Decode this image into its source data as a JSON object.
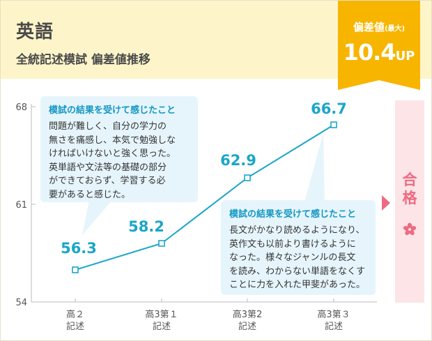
{
  "header": {
    "subject": "英語",
    "subtitle": "全統記述模試 偏差値推移"
  },
  "badge": {
    "title": "偏差値",
    "title_note": "(最大)",
    "value": "10.4",
    "unit": "UP",
    "color": "#f7b500"
  },
  "callouts": [
    {
      "title": "模試の結果を受けて感じたこと",
      "lines": [
        "問題が難しく、自分の学力の",
        "無さを痛感し、本気で勉強しな",
        "ければいけないと強く思った。",
        "英単語や文法等の基礎の部分",
        "ができておらず、学習する必",
        "要があると感じた。"
      ]
    },
    {
      "title": "模試の結果を受けて感じたこと",
      "lines": [
        "長文がかなり読めるようになり、",
        "英作文も以前より書けるように",
        "なった。様々なジャンルの長文",
        "を読み、わからない単語をなくす",
        "ことに力を入れた甲斐があった。"
      ]
    }
  ],
  "result": {
    "chars": [
      "合",
      "格"
    ],
    "color": "#ee6a82"
  },
  "chart_data": {
    "type": "line",
    "categories": [
      [
        "高２",
        "記述"
      ],
      [
        "高3第１",
        "記述"
      ],
      [
        "高3第2",
        "記述"
      ],
      [
        "高3第３",
        "記述"
      ]
    ],
    "values": [
      56.3,
      58.2,
      62.9,
      66.7
    ],
    "value_labels": [
      "56.3",
      "58.2",
      "62.9",
      "66.7"
    ],
    "ylim": [
      54,
      68
    ],
    "yticks": [
      54,
      61,
      68
    ],
    "line_color": "#1aa6c8",
    "grid": false
  }
}
